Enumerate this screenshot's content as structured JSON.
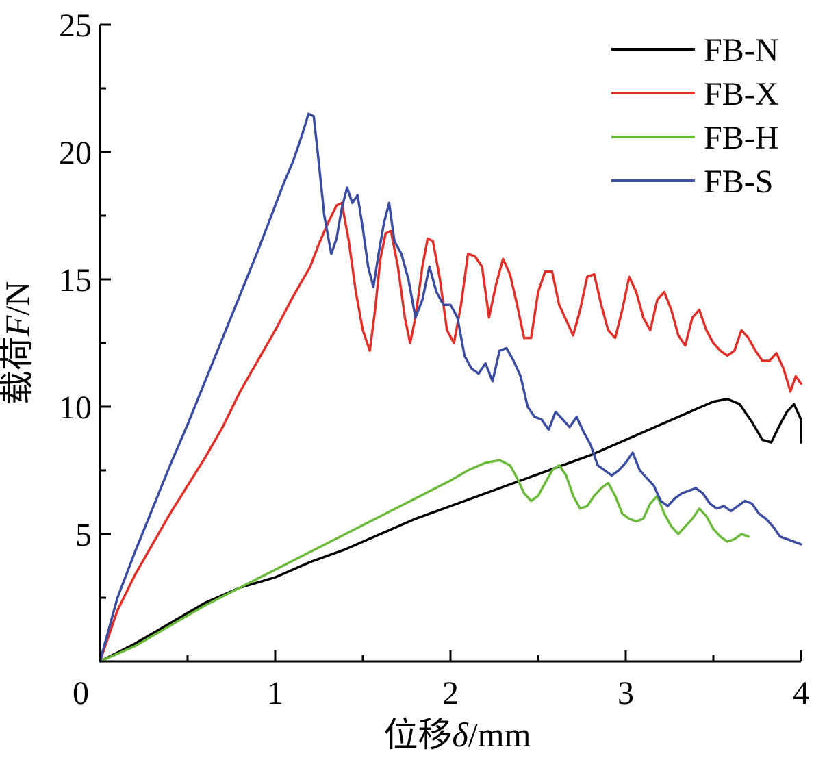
{
  "chart_data": {
    "type": "line",
    "xlabel_prefix": "位移",
    "xlabel_var": "δ",
    "xlabel_unit": "/mm",
    "ylabel_prefix": "载荷",
    "ylabel_var": "F",
    "ylabel_unit": "/N",
    "xlim": [
      0,
      4
    ],
    "ylim": [
      0,
      25
    ],
    "xticks": [
      0,
      1,
      2,
      3,
      4
    ],
    "yticks": [
      5,
      10,
      15,
      20,
      25
    ],
    "origin_label": "0",
    "grid": false,
    "legend_position": "top-right",
    "series": [
      {
        "name": "FB-N",
        "color": "#000000",
        "points": [
          [
            0,
            0
          ],
          [
            0.2,
            0.7
          ],
          [
            0.4,
            1.5
          ],
          [
            0.6,
            2.3
          ],
          [
            0.8,
            2.9
          ],
          [
            1.0,
            3.3
          ],
          [
            1.2,
            3.9
          ],
          [
            1.4,
            4.4
          ],
          [
            1.6,
            5.0
          ],
          [
            1.8,
            5.6
          ],
          [
            2.0,
            6.1
          ],
          [
            2.2,
            6.6
          ],
          [
            2.4,
            7.1
          ],
          [
            2.6,
            7.6
          ],
          [
            2.8,
            8.1
          ],
          [
            3.0,
            8.7
          ],
          [
            3.2,
            9.3
          ],
          [
            3.4,
            9.9
          ],
          [
            3.5,
            10.2
          ],
          [
            3.58,
            10.3
          ],
          [
            3.65,
            10.1
          ],
          [
            3.72,
            9.4
          ],
          [
            3.78,
            8.7
          ],
          [
            3.83,
            8.6
          ],
          [
            3.88,
            9.3
          ],
          [
            3.92,
            9.8
          ],
          [
            3.96,
            10.1
          ],
          [
            4.0,
            9.5
          ],
          [
            4.0,
            8.6
          ]
        ]
      },
      {
        "name": "FB-X",
        "color": "#e0302a",
        "points": [
          [
            0,
            0
          ],
          [
            0.1,
            2.0
          ],
          [
            0.2,
            3.4
          ],
          [
            0.3,
            4.6
          ],
          [
            0.4,
            5.8
          ],
          [
            0.5,
            6.9
          ],
          [
            0.6,
            8.0
          ],
          [
            0.7,
            9.2
          ],
          [
            0.8,
            10.6
          ],
          [
            0.9,
            11.8
          ],
          [
            1.0,
            13.0
          ],
          [
            1.1,
            14.3
          ],
          [
            1.2,
            15.5
          ],
          [
            1.25,
            16.4
          ],
          [
            1.3,
            17.2
          ],
          [
            1.35,
            17.9
          ],
          [
            1.38,
            18.0
          ],
          [
            1.42,
            16.5
          ],
          [
            1.46,
            14.5
          ],
          [
            1.5,
            13.0
          ],
          [
            1.54,
            12.2
          ],
          [
            1.57,
            13.8
          ],
          [
            1.6,
            15.8
          ],
          [
            1.63,
            16.8
          ],
          [
            1.66,
            16.9
          ],
          [
            1.7,
            15.5
          ],
          [
            1.74,
            13.5
          ],
          [
            1.77,
            12.5
          ],
          [
            1.8,
            13.5
          ],
          [
            1.84,
            15.5
          ],
          [
            1.87,
            16.6
          ],
          [
            1.9,
            16.5
          ],
          [
            1.94,
            15.0
          ],
          [
            1.98,
            13.0
          ],
          [
            2.02,
            12.5
          ],
          [
            2.06,
            14.0
          ],
          [
            2.1,
            16.0
          ],
          [
            2.14,
            15.9
          ],
          [
            2.18,
            15.5
          ],
          [
            2.22,
            13.5
          ],
          [
            2.26,
            14.8
          ],
          [
            2.3,
            15.8
          ],
          [
            2.34,
            15.2
          ],
          [
            2.38,
            14.0
          ],
          [
            2.42,
            12.7
          ],
          [
            2.46,
            12.7
          ],
          [
            2.5,
            14.5
          ],
          [
            2.54,
            15.3
          ],
          [
            2.58,
            15.3
          ],
          [
            2.62,
            14.0
          ],
          [
            2.66,
            13.4
          ],
          [
            2.7,
            12.8
          ],
          [
            2.74,
            13.8
          ],
          [
            2.78,
            15.1
          ],
          [
            2.82,
            15.2
          ],
          [
            2.86,
            14.0
          ],
          [
            2.9,
            13.0
          ],
          [
            2.94,
            12.7
          ],
          [
            2.98,
            13.8
          ],
          [
            3.02,
            15.1
          ],
          [
            3.06,
            14.5
          ],
          [
            3.1,
            13.5
          ],
          [
            3.14,
            13.0
          ],
          [
            3.18,
            14.2
          ],
          [
            3.22,
            14.5
          ],
          [
            3.26,
            13.8
          ],
          [
            3.3,
            12.8
          ],
          [
            3.34,
            12.4
          ],
          [
            3.38,
            13.5
          ],
          [
            3.42,
            13.8
          ],
          [
            3.46,
            13.0
          ],
          [
            3.5,
            12.5
          ],
          [
            3.54,
            12.2
          ],
          [
            3.58,
            12.0
          ],
          [
            3.62,
            12.2
          ],
          [
            3.66,
            13.0
          ],
          [
            3.7,
            12.7
          ],
          [
            3.74,
            12.2
          ],
          [
            3.78,
            11.8
          ],
          [
            3.82,
            11.8
          ],
          [
            3.86,
            12.1
          ],
          [
            3.9,
            11.5
          ],
          [
            3.94,
            10.6
          ],
          [
            3.97,
            11.2
          ],
          [
            4.0,
            10.9
          ]
        ]
      },
      {
        "name": "FB-H",
        "color": "#6cba3c",
        "points": [
          [
            0,
            0
          ],
          [
            0.2,
            0.6
          ],
          [
            0.4,
            1.4
          ],
          [
            0.6,
            2.2
          ],
          [
            0.8,
            2.9
          ],
          [
            1.0,
            3.6
          ],
          [
            1.2,
            4.3
          ],
          [
            1.4,
            5.0
          ],
          [
            1.6,
            5.7
          ],
          [
            1.8,
            6.4
          ],
          [
            2.0,
            7.1
          ],
          [
            2.1,
            7.5
          ],
          [
            2.2,
            7.8
          ],
          [
            2.28,
            7.9
          ],
          [
            2.34,
            7.7
          ],
          [
            2.38,
            7.2
          ],
          [
            2.42,
            6.6
          ],
          [
            2.46,
            6.3
          ],
          [
            2.5,
            6.5
          ],
          [
            2.54,
            7.0
          ],
          [
            2.58,
            7.5
          ],
          [
            2.62,
            7.7
          ],
          [
            2.66,
            7.3
          ],
          [
            2.7,
            6.5
          ],
          [
            2.74,
            6.0
          ],
          [
            2.78,
            6.1
          ],
          [
            2.82,
            6.5
          ],
          [
            2.86,
            6.8
          ],
          [
            2.9,
            7.0
          ],
          [
            2.94,
            6.5
          ],
          [
            2.98,
            5.8
          ],
          [
            3.02,
            5.6
          ],
          [
            3.06,
            5.5
          ],
          [
            3.1,
            5.6
          ],
          [
            3.14,
            6.2
          ],
          [
            3.18,
            6.5
          ],
          [
            3.22,
            5.8
          ],
          [
            3.26,
            5.3
          ],
          [
            3.3,
            5.0
          ],
          [
            3.34,
            5.3
          ],
          [
            3.38,
            5.6
          ],
          [
            3.42,
            6.0
          ],
          [
            3.46,
            5.7
          ],
          [
            3.5,
            5.2
          ],
          [
            3.54,
            4.9
          ],
          [
            3.58,
            4.7
          ],
          [
            3.62,
            4.8
          ],
          [
            3.66,
            5.0
          ],
          [
            3.7,
            4.9
          ]
        ]
      },
      {
        "name": "FB-S",
        "color": "#3b4da0",
        "points": [
          [
            0,
            0
          ],
          [
            0.1,
            2.5
          ],
          [
            0.2,
            4.3
          ],
          [
            0.3,
            6.0
          ],
          [
            0.4,
            7.7
          ],
          [
            0.5,
            9.3
          ],
          [
            0.6,
            11.0
          ],
          [
            0.7,
            12.7
          ],
          [
            0.8,
            14.4
          ],
          [
            0.9,
            16.1
          ],
          [
            1.0,
            17.9
          ],
          [
            1.05,
            18.8
          ],
          [
            1.1,
            19.6
          ],
          [
            1.15,
            20.6
          ],
          [
            1.19,
            21.5
          ],
          [
            1.22,
            21.4
          ],
          [
            1.25,
            19.5
          ],
          [
            1.28,
            17.5
          ],
          [
            1.32,
            16.0
          ],
          [
            1.35,
            16.6
          ],
          [
            1.38,
            17.8
          ],
          [
            1.41,
            18.6
          ],
          [
            1.44,
            18.0
          ],
          [
            1.47,
            18.3
          ],
          [
            1.5,
            17.0
          ],
          [
            1.53,
            15.5
          ],
          [
            1.56,
            14.7
          ],
          [
            1.59,
            16.0
          ],
          [
            1.62,
            17.2
          ],
          [
            1.65,
            18.0
          ],
          [
            1.68,
            16.5
          ],
          [
            1.72,
            16.0
          ],
          [
            1.76,
            15.0
          ],
          [
            1.8,
            13.5
          ],
          [
            1.84,
            14.2
          ],
          [
            1.88,
            15.5
          ],
          [
            1.92,
            14.5
          ],
          [
            1.96,
            14.0
          ],
          [
            2.0,
            14.0
          ],
          [
            2.04,
            13.5
          ],
          [
            2.08,
            12.0
          ],
          [
            2.12,
            11.5
          ],
          [
            2.16,
            11.3
          ],
          [
            2.2,
            11.7
          ],
          [
            2.24,
            11.0
          ],
          [
            2.28,
            12.2
          ],
          [
            2.32,
            12.3
          ],
          [
            2.36,
            11.8
          ],
          [
            2.4,
            11.2
          ],
          [
            2.44,
            10.0
          ],
          [
            2.48,
            9.6
          ],
          [
            2.52,
            9.5
          ],
          [
            2.56,
            9.1
          ],
          [
            2.6,
            9.8
          ],
          [
            2.64,
            9.5
          ],
          [
            2.68,
            9.2
          ],
          [
            2.72,
            9.6
          ],
          [
            2.76,
            9.0
          ],
          [
            2.8,
            8.5
          ],
          [
            2.84,
            7.7
          ],
          [
            2.88,
            7.5
          ],
          [
            2.92,
            7.3
          ],
          [
            2.96,
            7.5
          ],
          [
            3.0,
            7.8
          ],
          [
            3.04,
            8.2
          ],
          [
            3.08,
            7.5
          ],
          [
            3.12,
            7.2
          ],
          [
            3.16,
            6.9
          ],
          [
            3.2,
            6.3
          ],
          [
            3.24,
            6.1
          ],
          [
            3.28,
            6.4
          ],
          [
            3.32,
            6.6
          ],
          [
            3.36,
            6.7
          ],
          [
            3.4,
            6.8
          ],
          [
            3.44,
            6.6
          ],
          [
            3.48,
            6.2
          ],
          [
            3.52,
            6.0
          ],
          [
            3.56,
            6.1
          ],
          [
            3.6,
            5.9
          ],
          [
            3.64,
            6.1
          ],
          [
            3.68,
            6.3
          ],
          [
            3.72,
            6.2
          ],
          [
            3.76,
            5.8
          ],
          [
            3.8,
            5.6
          ],
          [
            3.84,
            5.3
          ],
          [
            3.88,
            4.9
          ],
          [
            3.92,
            4.8
          ],
          [
            3.96,
            4.7
          ],
          [
            4.0,
            4.6
          ]
        ]
      }
    ]
  }
}
